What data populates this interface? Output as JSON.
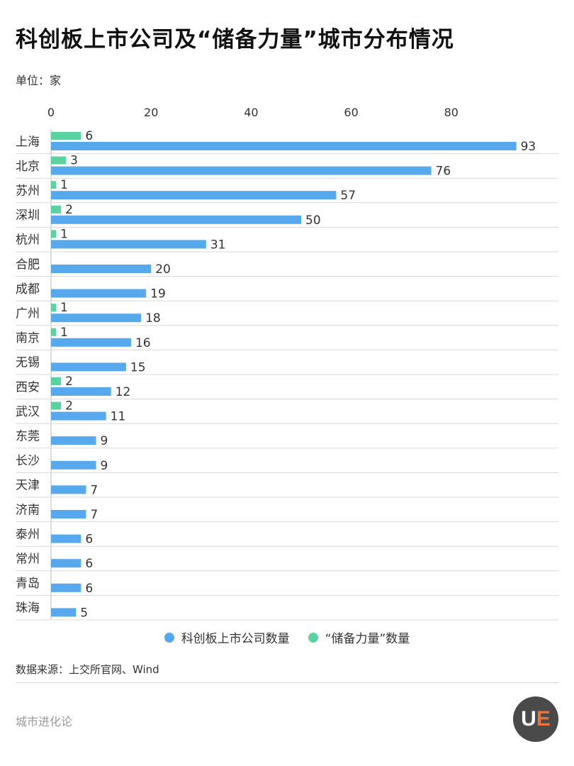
{
  "title": "科创板上市公司及“储备力量”城市分布情况",
  "unit": "单位：家",
  "source": "数据来源：上交所官网、Wind",
  "brand": "城市进化论",
  "logo_text": "UE",
  "colors": {
    "primary": "#56a9ec",
    "reserve": "#5ad3a0",
    "grid": "#d9d9d9",
    "label": "#333333"
  },
  "legend": [
    {
      "label": "科创板上市公司数量",
      "color": "#56a9ec"
    },
    {
      "label": "“储备力量”数量",
      "color": "#5ad3a0"
    }
  ],
  "chart_data": {
    "type": "bar",
    "orientation": "horizontal",
    "categories": [
      "上海",
      "北京",
      "苏州",
      "深圳",
      "杭州",
      "合肥",
      "成都",
      "广州",
      "南京",
      "无锡",
      "西安",
      "武汉",
      "东莞",
      "长沙",
      "天津",
      "济南",
      "泰州",
      "常州",
      "青岛",
      "珠海"
    ],
    "series": [
      {
        "name": "科创板上市公司数量",
        "values": [
          93,
          76,
          57,
          50,
          31,
          20,
          19,
          18,
          16,
          15,
          12,
          11,
          9,
          9,
          7,
          7,
          6,
          6,
          6,
          5
        ]
      },
      {
        "name": "“储备力量”数量",
        "values": [
          6,
          3,
          1,
          2,
          1,
          null,
          null,
          1,
          1,
          null,
          2,
          2,
          null,
          null,
          null,
          null,
          null,
          null,
          null,
          null
        ]
      }
    ],
    "x_ticks": [
      0,
      20,
      40,
      60,
      80
    ],
    "xlim": [
      0,
      93
    ],
    "grid": true,
    "legend_position": "bottom"
  }
}
